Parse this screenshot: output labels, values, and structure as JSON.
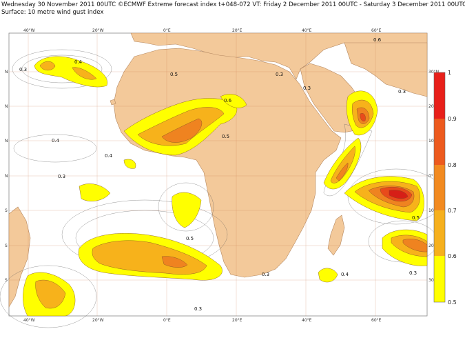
{
  "header": {
    "line1": "Wednesday 30 November 2011 00UTC ©ECMWF Extreme forecast index t+048-072 VT: Friday 2 December 2011 00UTC - Saturday 3 December 2011 00UTC",
    "line2": "Surface: 10 metre wind gust index"
  },
  "map": {
    "lon_ticks_top": [
      "40°W",
      "20°W",
      "0°E",
      "20°E",
      "40°E",
      "60°E"
    ],
    "lon_ticks_bottom": [
      "40°W",
      "20°W",
      "0°E",
      "20°E",
      "40°E",
      "60°E"
    ],
    "lat_ticks_left": [
      "N",
      "N",
      "N",
      "N",
      "S",
      "S",
      "S"
    ],
    "lat_ticks_right": [
      "30°N",
      "20",
      "10",
      "0°",
      "10",
      "20",
      "30"
    ],
    "contour_labels": [
      "0.3",
      "0.4",
      "0.5",
      "0.6",
      "0.3",
      "0.4",
      "0.3",
      "0.5",
      "0.3",
      "0.3",
      "0.4",
      "0.3",
      "0.5",
      "0.6",
      "0.5",
      "0.4",
      "0.3",
      "0.3"
    ],
    "colors": {
      "ocean": "#ffffff",
      "land": "#f3c99a",
      "grid": "#c8734a",
      "c05": "#ffff00",
      "c06": "#f7b21b",
      "c07": "#ef8320",
      "c08": "#e84b1b",
      "c09": "#d61f17"
    }
  },
  "colorbar": {
    "labels": [
      "1",
      "0.9",
      "0.8",
      "0.7",
      "0.6",
      "0.5"
    ],
    "colors": [
      "#e8201a",
      "#ed5a1e",
      "#f28a20",
      "#f6b01d",
      "#ffff00"
    ]
  }
}
